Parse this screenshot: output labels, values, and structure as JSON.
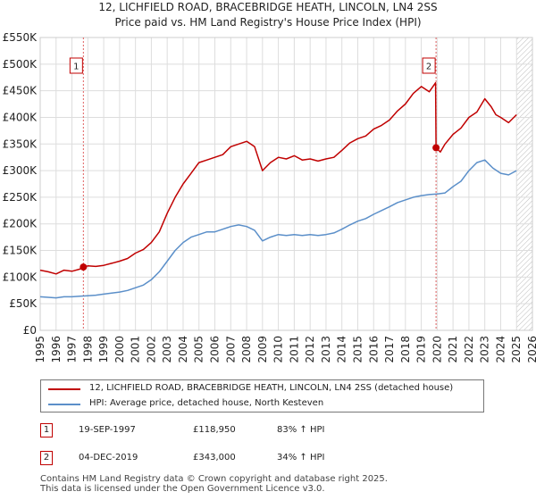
{
  "title": {
    "line1": "12, LICHFIELD ROAD, BRACEBRIDGE HEATH, LINCOLN, LN4 2SS",
    "line2": "Price paid vs. HM Land Registry's House Price Index (HPI)"
  },
  "chart_data": {
    "type": "line",
    "title": "12, LICHFIELD ROAD, BRACEBRIDGE HEATH, LINCOLN, LN4 2SS — Price paid vs. HM Land Registry's House Price Index (HPI)",
    "xlabel": "",
    "ylabel": "",
    "xlim": [
      1995,
      2026
    ],
    "ylim": [
      0,
      550000
    ],
    "y_ticks": [
      0,
      50000,
      100000,
      150000,
      200000,
      250000,
      300000,
      350000,
      400000,
      450000,
      500000,
      550000
    ],
    "y_tick_labels": [
      "£0",
      "£50K",
      "£100K",
      "£150K",
      "£200K",
      "£250K",
      "£300K",
      "£350K",
      "£400K",
      "£450K",
      "£500K",
      "£550K"
    ],
    "x_ticks": [
      1995,
      1996,
      1997,
      1998,
      1999,
      2000,
      2001,
      2002,
      2003,
      2004,
      2005,
      2006,
      2007,
      2008,
      2009,
      2010,
      2011,
      2012,
      2013,
      2014,
      2015,
      2016,
      2017,
      2018,
      2019,
      2020,
      2021,
      2022,
      2023,
      2024,
      2025,
      2026
    ],
    "grid": true,
    "hatched_from": 2025.0,
    "series": [
      {
        "name": "12, LICHFIELD ROAD, BRACEBRIDGE HEATH, LINCOLN, LN4 2SS (detached house)",
        "color": "#c00000",
        "x": [
          1995.0,
          1995.5,
          1996.0,
          1996.5,
          1997.0,
          1997.5,
          1997.72,
          1998.0,
          1998.5,
          1999.0,
          1999.5,
          2000.0,
          2000.5,
          2001.0,
          2001.5,
          2002.0,
          2002.5,
          2003.0,
          2003.5,
          2004.0,
          2004.5,
          2005.0,
          2005.5,
          2006.0,
          2006.5,
          2007.0,
          2007.5,
          2008.0,
          2008.5,
          2009.0,
          2009.5,
          2010.0,
          2010.5,
          2011.0,
          2011.5,
          2012.0,
          2012.5,
          2013.0,
          2013.5,
          2014.0,
          2014.5,
          2015.0,
          2015.5,
          2016.0,
          2016.5,
          2017.0,
          2017.5,
          2018.0,
          2018.5,
          2019.0,
          2019.5,
          2019.9,
          2019.93,
          2020.2,
          2020.5,
          2021.0,
          2021.5,
          2022.0,
          2022.5,
          2023.0,
          2023.4,
          2023.7,
          2024.0,
          2024.5,
          2025.0
        ],
        "values": [
          113000,
          110000,
          106000,
          113000,
          111000,
          115000,
          118950,
          121000,
          120000,
          122000,
          126000,
          130000,
          135000,
          145000,
          152000,
          165000,
          185000,
          220000,
          250000,
          275000,
          295000,
          315000,
          320000,
          325000,
          330000,
          345000,
          350000,
          355000,
          345000,
          300000,
          315000,
          325000,
          322000,
          328000,
          320000,
          322000,
          318000,
          322000,
          325000,
          338000,
          352000,
          360000,
          365000,
          378000,
          385000,
          395000,
          412000,
          425000,
          445000,
          458000,
          448000,
          465000,
          343000,
          335000,
          350000,
          368000,
          380000,
          400000,
          410000,
          435000,
          420000,
          405000,
          400000,
          390000,
          405000
        ]
      },
      {
        "name": "HPI: Average price, detached house, North Kesteven",
        "color": "#5b8fc9",
        "x": [
          1995.0,
          1995.5,
          1996.0,
          1996.5,
          1997.0,
          1997.5,
          1998.0,
          1998.5,
          1999.0,
          1999.5,
          2000.0,
          2000.5,
          2001.0,
          2001.5,
          2002.0,
          2002.5,
          2003.0,
          2003.5,
          2004.0,
          2004.5,
          2005.0,
          2005.5,
          2006.0,
          2006.5,
          2007.0,
          2007.5,
          2008.0,
          2008.5,
          2009.0,
          2009.5,
          2010.0,
          2010.5,
          2011.0,
          2011.5,
          2012.0,
          2012.5,
          2013.0,
          2013.5,
          2014.0,
          2014.5,
          2015.0,
          2015.5,
          2016.0,
          2016.5,
          2017.0,
          2017.5,
          2018.0,
          2018.5,
          2019.0,
          2019.5,
          2020.0,
          2020.5,
          2021.0,
          2021.5,
          2022.0,
          2022.5,
          2023.0,
          2023.5,
          2024.0,
          2024.5,
          2025.0
        ],
        "values": [
          63000,
          62000,
          61000,
          63000,
          63000,
          64000,
          65000,
          66000,
          68000,
          70000,
          72000,
          75000,
          80000,
          85000,
          95000,
          110000,
          130000,
          150000,
          165000,
          175000,
          180000,
          185000,
          185000,
          190000,
          195000,
          198000,
          195000,
          188000,
          168000,
          175000,
          180000,
          178000,
          180000,
          178000,
          180000,
          178000,
          180000,
          183000,
          190000,
          198000,
          205000,
          210000,
          218000,
          225000,
          232000,
          240000,
          245000,
          250000,
          253000,
          255000,
          256000,
          258000,
          270000,
          280000,
          300000,
          315000,
          320000,
          305000,
          295000,
          292000,
          300000
        ]
      }
    ],
    "markers": [
      {
        "label": "1",
        "x": 1997.72,
        "y": 118950
      },
      {
        "label": "2",
        "x": 2019.93,
        "y": 343000
      }
    ]
  },
  "legend": {
    "items": [
      {
        "label": "12, LICHFIELD ROAD, BRACEBRIDGE HEATH, LINCOLN, LN4 2SS (detached house)",
        "color": "#c00000"
      },
      {
        "label": "HPI: Average price, detached house, North Kesteven",
        "color": "#5b8fc9"
      }
    ]
  },
  "transactions": [
    {
      "num": "1",
      "date": "19-SEP-1997",
      "price": "£118,950",
      "hpi": "83% ↑ HPI"
    },
    {
      "num": "2",
      "date": "04-DEC-2019",
      "price": "£343,000",
      "hpi": "34% ↑ HPI"
    }
  ],
  "footer": {
    "line1": "Contains HM Land Registry data © Crown copyright and database right 2025.",
    "line2": "This data is licensed under the Open Government Licence v3.0."
  }
}
